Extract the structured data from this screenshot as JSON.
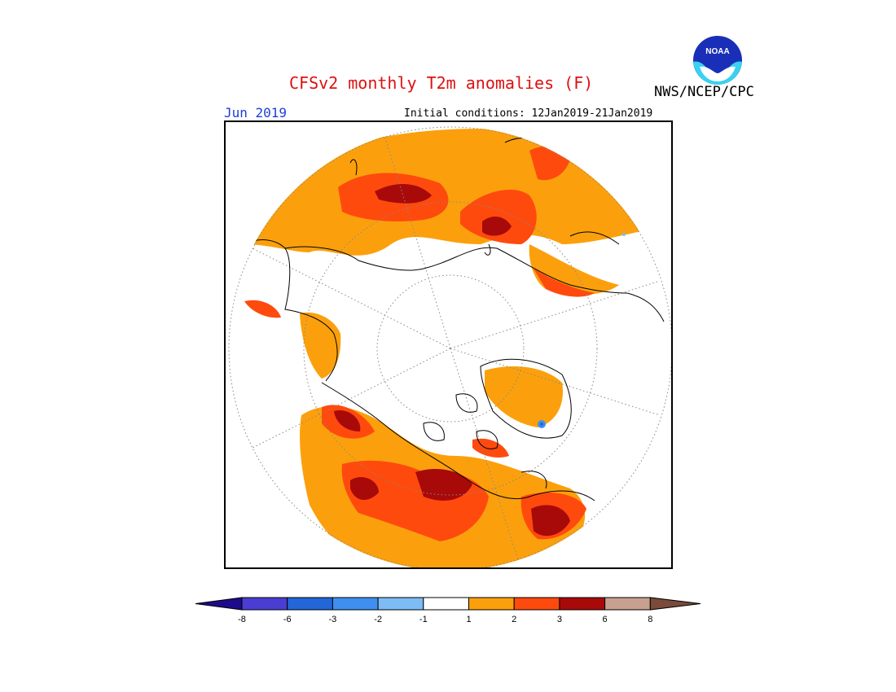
{
  "header": {
    "title": "CFSv2 monthly T2m anomalies (F)",
    "agency": "NWS/NCEP/CPC",
    "logo_text": "NOAA",
    "month": "Jun 2019",
    "initial_conditions": "Initial conditions: 12Jan2019-21Jan2019"
  },
  "legend": {
    "tick_labels": [
      "-8",
      "-6",
      "-3",
      "-2",
      "-1",
      "1",
      "2",
      "3",
      "6",
      "8"
    ],
    "colors": [
      "#1e0b8a",
      "#4a3ed2",
      "#2266d8",
      "#3f8ff0",
      "#7dbcf5",
      "#ffffff",
      "#fba00c",
      "#ff4a0e",
      "#a80a0a",
      "#c8a090",
      "#7a4a3a"
    ]
  },
  "colors": {
    "land_outline": "#000000",
    "grid": "#888888",
    "title": "#e01010",
    "month": "#1b3fd8"
  }
}
